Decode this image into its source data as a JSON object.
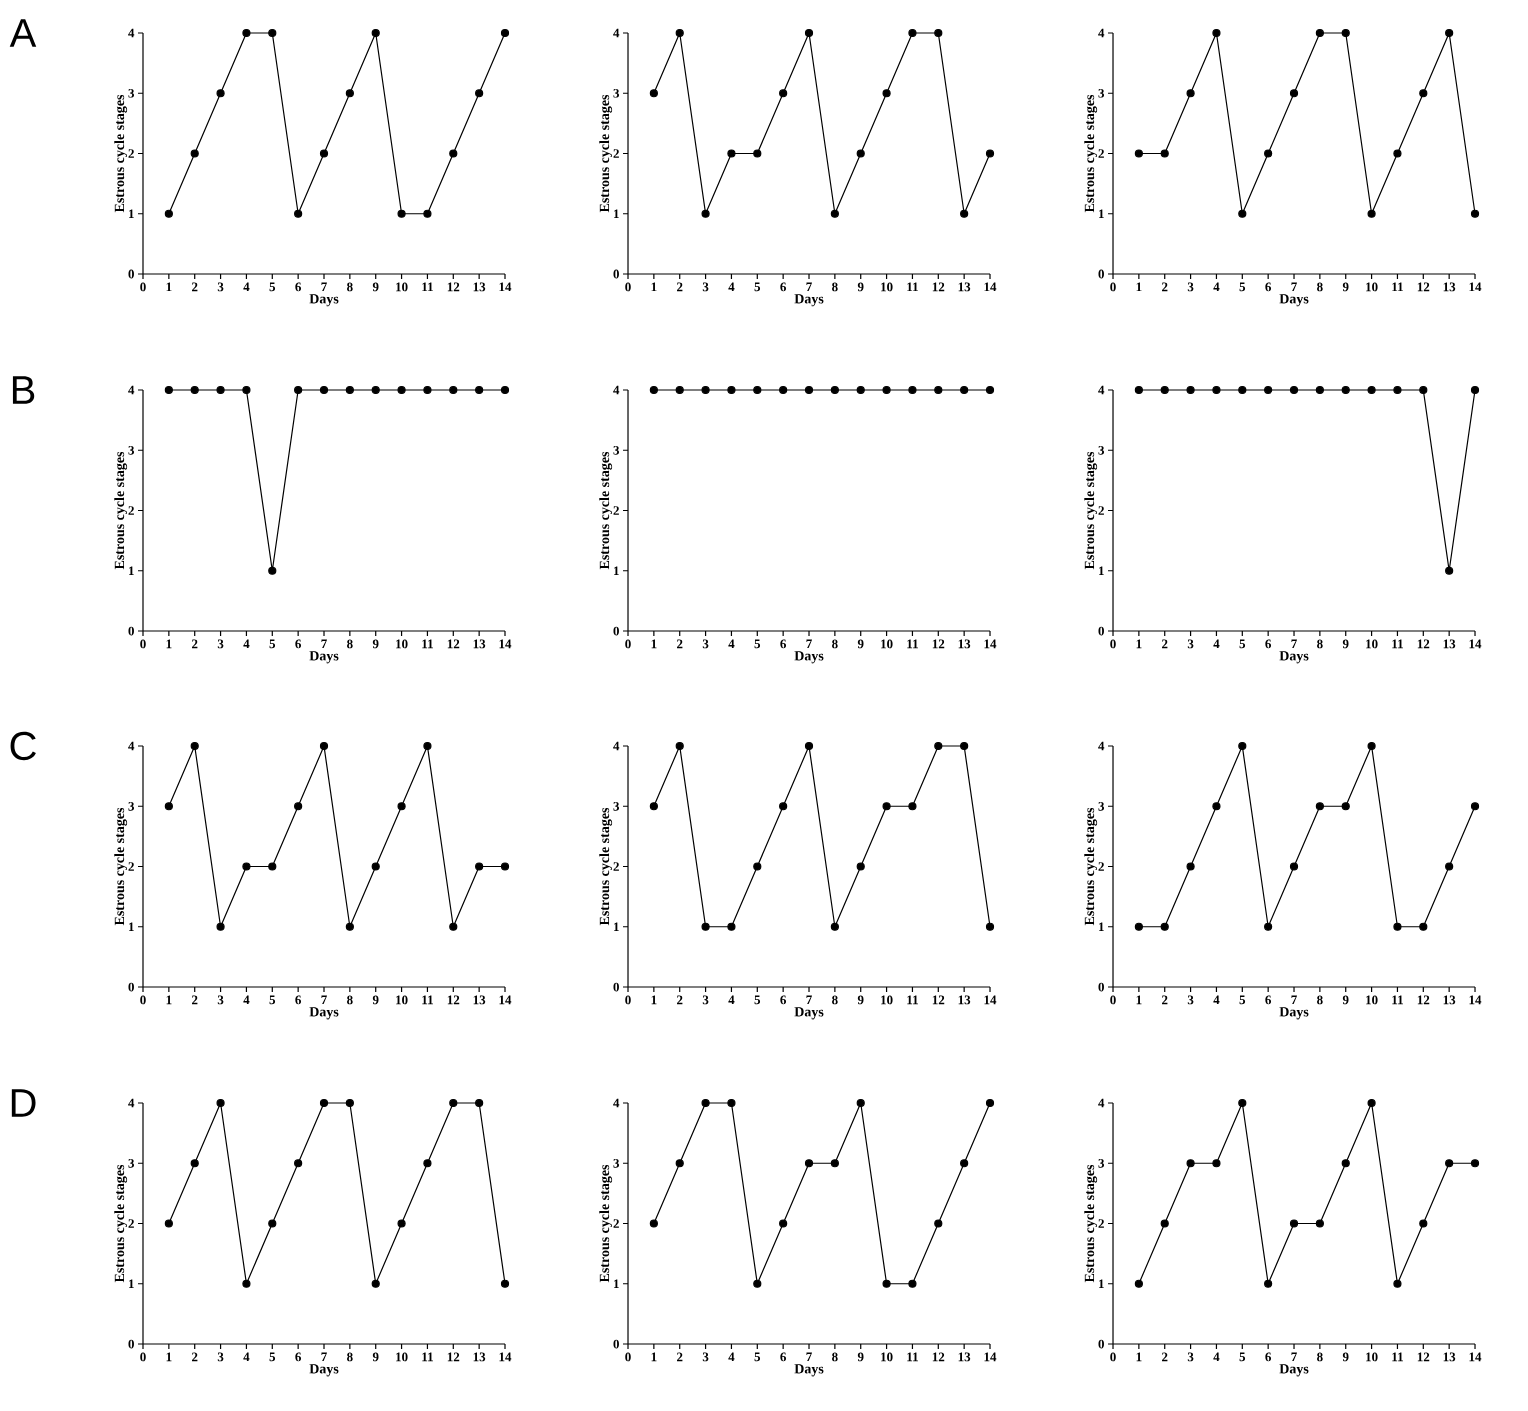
{
  "chart_data": [
    {
      "type": "line",
      "title": "A",
      "xlabel": "Days",
      "ylabel": "Estrous cycle stages",
      "x": [
        1,
        2,
        3,
        4,
        5,
        6,
        7,
        8,
        9,
        10,
        11,
        12,
        13,
        14
      ],
      "values": [
        1,
        2,
        3,
        4,
        4,
        1,
        2,
        3,
        4,
        1,
        1,
        2,
        3,
        4
      ],
      "color": "#000000",
      "marker": "circle",
      "xlim": [
        0,
        14
      ],
      "ylim": [
        0,
        4
      ],
      "xticks": [
        0,
        1,
        2,
        3,
        4,
        5,
        6,
        7,
        8,
        9,
        10,
        11,
        12,
        13,
        14
      ],
      "yticks": [
        0,
        1,
        2,
        3,
        4
      ]
    },
    {
      "type": "line",
      "xlabel": "Days",
      "ylabel": "Estrous cycle stages",
      "x": [
        1,
        2,
        3,
        4,
        5,
        6,
        7,
        8,
        9,
        10,
        11,
        12,
        13,
        14
      ],
      "values": [
        3,
        4,
        1,
        2,
        2,
        3,
        4,
        1,
        2,
        3,
        4,
        4,
        1,
        2
      ],
      "color": "#000000",
      "marker": "circle",
      "xlim": [
        0,
        14
      ],
      "ylim": [
        0,
        4
      ],
      "xticks": [
        0,
        1,
        2,
        3,
        4,
        5,
        6,
        7,
        8,
        9,
        10,
        11,
        12,
        13,
        14
      ],
      "yticks": [
        0,
        1,
        2,
        3,
        4
      ]
    },
    {
      "type": "line",
      "xlabel": "Days",
      "ylabel": "Estrous cycle stages",
      "x": [
        1,
        2,
        3,
        4,
        5,
        6,
        7,
        8,
        9,
        10,
        11,
        12,
        13,
        14
      ],
      "values": [
        2,
        2,
        3,
        4,
        1,
        2,
        3,
        4,
        4,
        1,
        2,
        3,
        4,
        1
      ],
      "color": "#000000",
      "marker": "circle",
      "xlim": [
        0,
        14
      ],
      "ylim": [
        0,
        4
      ],
      "xticks": [
        0,
        1,
        2,
        3,
        4,
        5,
        6,
        7,
        8,
        9,
        10,
        11,
        12,
        13,
        14
      ],
      "yticks": [
        0,
        1,
        2,
        3,
        4
      ]
    },
    {
      "type": "line",
      "title": "B",
      "xlabel": "Days",
      "ylabel": "Estrous cycle stages",
      "x": [
        1,
        2,
        3,
        4,
        5,
        6,
        7,
        8,
        9,
        10,
        11,
        12,
        13,
        14
      ],
      "values": [
        4,
        4,
        4,
        4,
        1,
        4,
        4,
        4,
        4,
        4,
        4,
        4,
        4,
        4
      ],
      "color": "#000000",
      "marker": "circle",
      "xlim": [
        0,
        14
      ],
      "ylim": [
        0,
        4
      ],
      "xticks": [
        0,
        1,
        2,
        3,
        4,
        5,
        6,
        7,
        8,
        9,
        10,
        11,
        12,
        13,
        14
      ],
      "yticks": [
        0,
        1,
        2,
        3,
        4
      ]
    },
    {
      "type": "line",
      "xlabel": "Days",
      "ylabel": "Estrous cycle stages",
      "x": [
        1,
        2,
        3,
        4,
        5,
        6,
        7,
        8,
        9,
        10,
        11,
        12,
        13,
        14
      ],
      "values": [
        4,
        4,
        4,
        4,
        4,
        4,
        4,
        4,
        4,
        4,
        4,
        4,
        4,
        4
      ],
      "color": "#000000",
      "marker": "circle",
      "xlim": [
        0,
        14
      ],
      "ylim": [
        0,
        4
      ],
      "xticks": [
        0,
        1,
        2,
        3,
        4,
        5,
        6,
        7,
        8,
        9,
        10,
        11,
        12,
        13,
        14
      ],
      "yticks": [
        0,
        1,
        2,
        3,
        4
      ]
    },
    {
      "type": "line",
      "xlabel": "Days",
      "ylabel": "Estrous cycle stages",
      "x": [
        1,
        2,
        3,
        4,
        5,
        6,
        7,
        8,
        9,
        10,
        11,
        12,
        13,
        14
      ],
      "values": [
        4,
        4,
        4,
        4,
        4,
        4,
        4,
        4,
        4,
        4,
        4,
        4,
        1,
        4
      ],
      "color": "#000000",
      "marker": "circle",
      "xlim": [
        0,
        14
      ],
      "ylim": [
        0,
        4
      ],
      "xticks": [
        0,
        1,
        2,
        3,
        4,
        5,
        6,
        7,
        8,
        9,
        10,
        11,
        12,
        13,
        14
      ],
      "yticks": [
        0,
        1,
        2,
        3,
        4
      ]
    },
    {
      "type": "line",
      "title": "C",
      "xlabel": "Days",
      "ylabel": "Estrous cycle stages",
      "x": [
        1,
        2,
        3,
        4,
        5,
        6,
        7,
        8,
        9,
        10,
        11,
        12,
        13,
        14
      ],
      "values": [
        3,
        4,
        1,
        2,
        2,
        3,
        4,
        1,
        2,
        3,
        4,
        1,
        2,
        2
      ],
      "color": "#000000",
      "marker": "circle",
      "xlim": [
        0,
        14
      ],
      "ylim": [
        0,
        4
      ],
      "xticks": [
        0,
        1,
        2,
        3,
        4,
        5,
        6,
        7,
        8,
        9,
        10,
        11,
        12,
        13,
        14
      ],
      "yticks": [
        0,
        1,
        2,
        3,
        4
      ]
    },
    {
      "type": "line",
      "xlabel": "Days",
      "ylabel": "Estrous cycle stages",
      "x": [
        1,
        2,
        3,
        4,
        5,
        6,
        7,
        8,
        9,
        10,
        11,
        12,
        13,
        14
      ],
      "values": [
        3,
        4,
        1,
        1,
        2,
        3,
        4,
        1,
        2,
        3,
        3,
        4,
        4,
        1
      ],
      "color": "#000000",
      "marker": "circle",
      "xlim": [
        0,
        14
      ],
      "ylim": [
        0,
        4
      ],
      "xticks": [
        0,
        1,
        2,
        3,
        4,
        5,
        6,
        7,
        8,
        9,
        10,
        11,
        12,
        13,
        14
      ],
      "yticks": [
        0,
        1,
        2,
        3,
        4
      ]
    },
    {
      "type": "line",
      "xlabel": "Days",
      "ylabel": "Estrous cycle stages",
      "x": [
        1,
        2,
        3,
        4,
        5,
        6,
        7,
        8,
        9,
        10,
        11,
        12,
        13,
        14
      ],
      "values": [
        1,
        1,
        2,
        3,
        4,
        1,
        2,
        3,
        3,
        4,
        1,
        1,
        2,
        3
      ],
      "color": "#000000",
      "marker": "circle",
      "xlim": [
        0,
        14
      ],
      "ylim": [
        0,
        4
      ],
      "xticks": [
        0,
        1,
        2,
        3,
        4,
        5,
        6,
        7,
        8,
        9,
        10,
        11,
        12,
        13,
        14
      ],
      "yticks": [
        0,
        1,
        2,
        3,
        4
      ]
    },
    {
      "type": "line",
      "title": "D",
      "xlabel": "Days",
      "ylabel": "Estrous cycle stages",
      "x": [
        1,
        2,
        3,
        4,
        5,
        6,
        7,
        8,
        9,
        10,
        11,
        12,
        13,
        14
      ],
      "values": [
        2,
        3,
        4,
        1,
        2,
        3,
        4,
        4,
        1,
        2,
        3,
        4,
        4,
        1
      ],
      "color": "#000000",
      "marker": "circle",
      "xlim": [
        0,
        14
      ],
      "ylim": [
        0,
        4
      ],
      "xticks": [
        0,
        1,
        2,
        3,
        4,
        5,
        6,
        7,
        8,
        9,
        10,
        11,
        12,
        13,
        14
      ],
      "yticks": [
        0,
        1,
        2,
        3,
        4
      ]
    },
    {
      "type": "line",
      "xlabel": "Days",
      "ylabel": "Estrous cycle stages",
      "x": [
        1,
        2,
        3,
        4,
        5,
        6,
        7,
        8,
        9,
        10,
        11,
        12,
        13,
        14
      ],
      "values": [
        2,
        3,
        4,
        4,
        1,
        2,
        3,
        3,
        4,
        1,
        1,
        2,
        3,
        4
      ],
      "color": "#000000",
      "marker": "circle",
      "xlim": [
        0,
        14
      ],
      "ylim": [
        0,
        4
      ],
      "xticks": [
        0,
        1,
        2,
        3,
        4,
        5,
        6,
        7,
        8,
        9,
        10,
        11,
        12,
        13,
        14
      ],
      "yticks": [
        0,
        1,
        2,
        3,
        4
      ]
    },
    {
      "type": "line",
      "xlabel": "Days",
      "ylabel": "Estrous cycle stages",
      "x": [
        1,
        2,
        3,
        4,
        5,
        6,
        7,
        8,
        9,
        10,
        11,
        12,
        13,
        14
      ],
      "values": [
        1,
        2,
        3,
        3,
        4,
        1,
        2,
        2,
        3,
        4,
        1,
        2,
        3,
        3
      ],
      "color": "#000000",
      "marker": "circle",
      "xlim": [
        0,
        14
      ],
      "ylim": [
        0,
        4
      ],
      "xticks": [
        0,
        1,
        2,
        3,
        4,
        5,
        6,
        7,
        8,
        9,
        10,
        11,
        12,
        13,
        14
      ],
      "yticks": [
        0,
        1,
        2,
        3,
        4
      ]
    }
  ]
}
